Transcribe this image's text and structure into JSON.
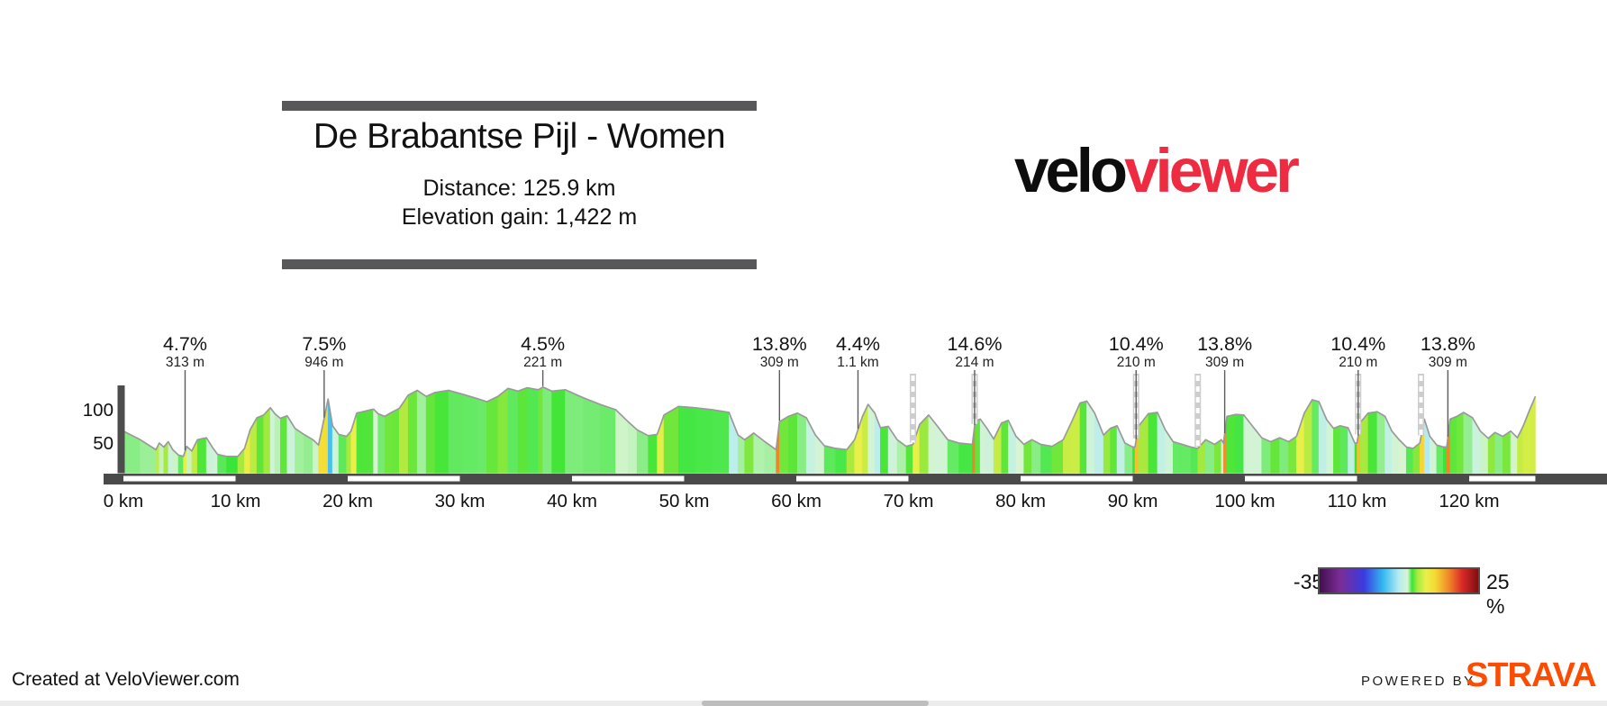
{
  "header": {
    "title": "De Brabantse Pijl - Women",
    "distance_label": "Distance: 125.9 km",
    "elevation_label": "Elevation gain: 1,422 m"
  },
  "logo": {
    "part1": "velo",
    "part2": "viewer",
    "part2_color": "#ee2b41"
  },
  "legend": {
    "min_label": "-35 %",
    "max_label": "25 %",
    "gradient_stops": [
      {
        "t": 0.0,
        "c": "#42104f"
      },
      {
        "t": 0.13,
        "c": "#7b2d96"
      },
      {
        "t": 0.28,
        "c": "#3a3ae0"
      },
      {
        "t": 0.4,
        "c": "#34b8f0"
      },
      {
        "t": 0.5,
        "c": "#b5ecf2"
      },
      {
        "t": 0.555,
        "c": "#d6f5d0"
      },
      {
        "t": 0.583,
        "c": "#38e538"
      },
      {
        "t": 0.615,
        "c": "#a5e93e"
      },
      {
        "t": 0.67,
        "c": "#eaf04a"
      },
      {
        "t": 0.73,
        "c": "#f5d932"
      },
      {
        "t": 0.82,
        "c": "#f08228"
      },
      {
        "t": 0.9,
        "c": "#da2828"
      },
      {
        "t": 1.0,
        "c": "#7d1010"
      }
    ],
    "slope_min_pct": -35,
    "slope_max_pct": 25
  },
  "footer": {
    "created_at": "Created at VeloViewer.com",
    "powered_by": "POWERED BY",
    "strava": "STRAVA",
    "strava_color": "#fc4c02"
  },
  "chart_data": {
    "type": "area",
    "title": "Elevation profile colored by gradient",
    "x_range_km": [
      0,
      125.9
    ],
    "x_tick_values": [
      0,
      10,
      20,
      30,
      40,
      50,
      60,
      70,
      80,
      90,
      100,
      110,
      120
    ],
    "x_tick_suffix": " km",
    "y_tick_values": [
      100,
      50
    ],
    "grid": false,
    "outline_color": "#9a9a9a",
    "axis_bar_color": "#4a4a4a",
    "start_marker_color": "#4d4d4d",
    "points": [
      [
        0,
        68
      ],
      [
        1.5,
        55
      ],
      [
        2.9,
        40
      ],
      [
        3.2,
        50
      ],
      [
        3.6,
        44
      ],
      [
        4.0,
        52
      ],
      [
        4.4,
        40
      ],
      [
        4.9,
        32
      ],
      [
        5.35,
        30
      ],
      [
        5.65,
        45
      ],
      [
        6.1,
        38
      ],
      [
        6.6,
        55
      ],
      [
        7.4,
        58
      ],
      [
        8.0,
        42
      ],
      [
        8.4,
        33
      ],
      [
        9.2,
        30
      ],
      [
        10.2,
        30
      ],
      [
        10.8,
        42
      ],
      [
        11.3,
        70
      ],
      [
        11.9,
        88
      ],
      [
        12.5,
        92
      ],
      [
        13.1,
        103
      ],
      [
        13.5,
        94
      ],
      [
        14.0,
        87
      ],
      [
        14.6,
        91
      ],
      [
        15.3,
        72
      ],
      [
        16.1,
        63
      ],
      [
        16.9,
        55
      ],
      [
        17.4,
        47
      ],
      [
        18.0,
        95
      ],
      [
        18.25,
        116
      ],
      [
        18.65,
        76
      ],
      [
        19.2,
        63
      ],
      [
        19.9,
        60
      ],
      [
        20.3,
        68
      ],
      [
        20.8,
        95
      ],
      [
        21.6,
        98
      ],
      [
        22.3,
        101
      ],
      [
        22.7,
        94
      ],
      [
        23.3,
        90
      ],
      [
        23.9,
        96
      ],
      [
        24.6,
        102
      ],
      [
        25.4,
        122
      ],
      [
        26.2,
        129
      ],
      [
        27.0,
        120
      ],
      [
        27.8,
        126
      ],
      [
        29.0,
        129
      ],
      [
        30.3,
        123
      ],
      [
        31.5,
        117
      ],
      [
        32.4,
        112
      ],
      [
        33.4,
        120
      ],
      [
        34.3,
        132
      ],
      [
        35.2,
        128
      ],
      [
        36.0,
        133
      ],
      [
        37.0,
        130
      ],
      [
        37.4,
        134
      ],
      [
        38.2,
        128
      ],
      [
        39.4,
        130
      ],
      [
        41.0,
        118
      ],
      [
        42.5,
        108
      ],
      [
        43.9,
        100
      ],
      [
        45.0,
        82
      ],
      [
        45.8,
        70
      ],
      [
        46.8,
        61
      ],
      [
        47.6,
        63
      ],
      [
        48.2,
        92
      ],
      [
        49.5,
        105
      ],
      [
        51.0,
        103
      ],
      [
        52.5,
        100
      ],
      [
        54.0,
        96
      ],
      [
        54.8,
        62
      ],
      [
        55.4,
        55
      ],
      [
        56.2,
        65
      ],
      [
        57.2,
        52
      ],
      [
        58.2,
        40
      ],
      [
        58.5,
        82
      ],
      [
        59.3,
        90
      ],
      [
        60.1,
        95
      ],
      [
        60.9,
        88
      ],
      [
        61.7,
        62
      ],
      [
        62.5,
        46
      ],
      [
        63.5,
        42
      ],
      [
        64.5,
        40
      ],
      [
        65.2,
        55
      ],
      [
        65.9,
        90
      ],
      [
        66.4,
        108
      ],
      [
        67.0,
        95
      ],
      [
        67.5,
        73
      ],
      [
        68.2,
        75
      ],
      [
        69.0,
        55
      ],
      [
        69.8,
        45
      ],
      [
        70.4,
        48
      ],
      [
        71.0,
        78
      ],
      [
        71.8,
        92
      ],
      [
        72.6,
        75
      ],
      [
        73.5,
        55
      ],
      [
        74.5,
        50
      ],
      [
        75.7,
        48
      ],
      [
        75.95,
        83
      ],
      [
        76.4,
        86
      ],
      [
        77.0,
        72
      ],
      [
        77.6,
        56
      ],
      [
        78.3,
        80
      ],
      [
        78.9,
        84
      ],
      [
        79.6,
        60
      ],
      [
        80.3,
        48
      ],
      [
        81.0,
        55
      ],
      [
        81.8,
        48
      ],
      [
        82.8,
        45
      ],
      [
        83.8,
        55
      ],
      [
        84.5,
        80
      ],
      [
        85.3,
        110
      ],
      [
        85.9,
        113
      ],
      [
        86.6,
        95
      ],
      [
        87.4,
        62
      ],
      [
        88.0,
        72
      ],
      [
        88.6,
        76
      ],
      [
        89.3,
        50
      ],
      [
        90.0,
        44
      ],
      [
        90.2,
        44
      ],
      [
        90.5,
        75
      ],
      [
        91.4,
        94
      ],
      [
        92.2,
        96
      ],
      [
        92.9,
        70
      ],
      [
        93.6,
        52
      ],
      [
        94.4,
        48
      ],
      [
        95.2,
        44
      ],
      [
        95.8,
        42
      ],
      [
        96.5,
        55
      ],
      [
        97.3,
        48
      ],
      [
        97.9,
        55
      ],
      [
        98.1,
        50
      ],
      [
        98.4,
        90
      ],
      [
        99.2,
        93
      ],
      [
        99.9,
        92
      ],
      [
        100.7,
        75
      ],
      [
        101.5,
        58
      ],
      [
        102.3,
        52
      ],
      [
        103.1,
        58
      ],
      [
        103.9,
        52
      ],
      [
        104.6,
        60
      ],
      [
        105.3,
        95
      ],
      [
        106.0,
        115
      ],
      [
        106.6,
        112
      ],
      [
        107.3,
        85
      ],
      [
        107.9,
        72
      ],
      [
        108.5,
        76
      ],
      [
        109.2,
        73
      ],
      [
        109.8,
        50
      ],
      [
        110.0,
        50
      ],
      [
        110.3,
        81
      ],
      [
        111.0,
        95
      ],
      [
        111.8,
        97
      ],
      [
        112.5,
        90
      ],
      [
        113.1,
        68
      ],
      [
        113.7,
        56
      ],
      [
        114.4,
        44
      ],
      [
        115.0,
        42
      ],
      [
        115.6,
        50
      ],
      [
        116.0,
        86
      ],
      [
        116.5,
        60
      ],
      [
        117.1,
        47
      ],
      [
        117.7,
        44
      ],
      [
        118.0,
        44
      ],
      [
        118.3,
        86
      ],
      [
        118.9,
        90
      ],
      [
        119.5,
        96
      ],
      [
        120.3,
        88
      ],
      [
        121.0,
        68
      ],
      [
        121.7,
        57
      ],
      [
        122.3,
        66
      ],
      [
        123.0,
        60
      ],
      [
        123.7,
        68
      ],
      [
        124.3,
        58
      ],
      [
        124.8,
        75
      ],
      [
        125.4,
        100
      ],
      [
        125.9,
        120
      ]
    ],
    "climbs": [
      {
        "grade": "4.7%",
        "length": "313 m",
        "km": 5.5
      },
      {
        "grade": "7.5%",
        "length": "946 m",
        "km": 17.9
      },
      {
        "grade": "4.5%",
        "length": "221 m",
        "km": 37.4
      },
      {
        "grade": "13.8%",
        "length": "309 m",
        "km": 58.5
      },
      {
        "grade": "4.4%",
        "length": "1.1 km",
        "km": 65.5
      },
      {
        "grade": "14.6%",
        "length": "214 m",
        "km": 75.9
      },
      {
        "grade": "10.4%",
        "length": "210 m",
        "km": 90.3
      },
      {
        "grade": "13.8%",
        "length": "309 m",
        "km": 98.2
      },
      {
        "grade": "10.4%",
        "length": "210 m",
        "km": 110.1
      },
      {
        "grade": "13.8%",
        "length": "309 m",
        "km": 118.1
      }
    ],
    "gantry_markers_km": [
      70.4,
      75.9,
      90.3,
      95.8,
      110.1,
      115.7
    ]
  }
}
